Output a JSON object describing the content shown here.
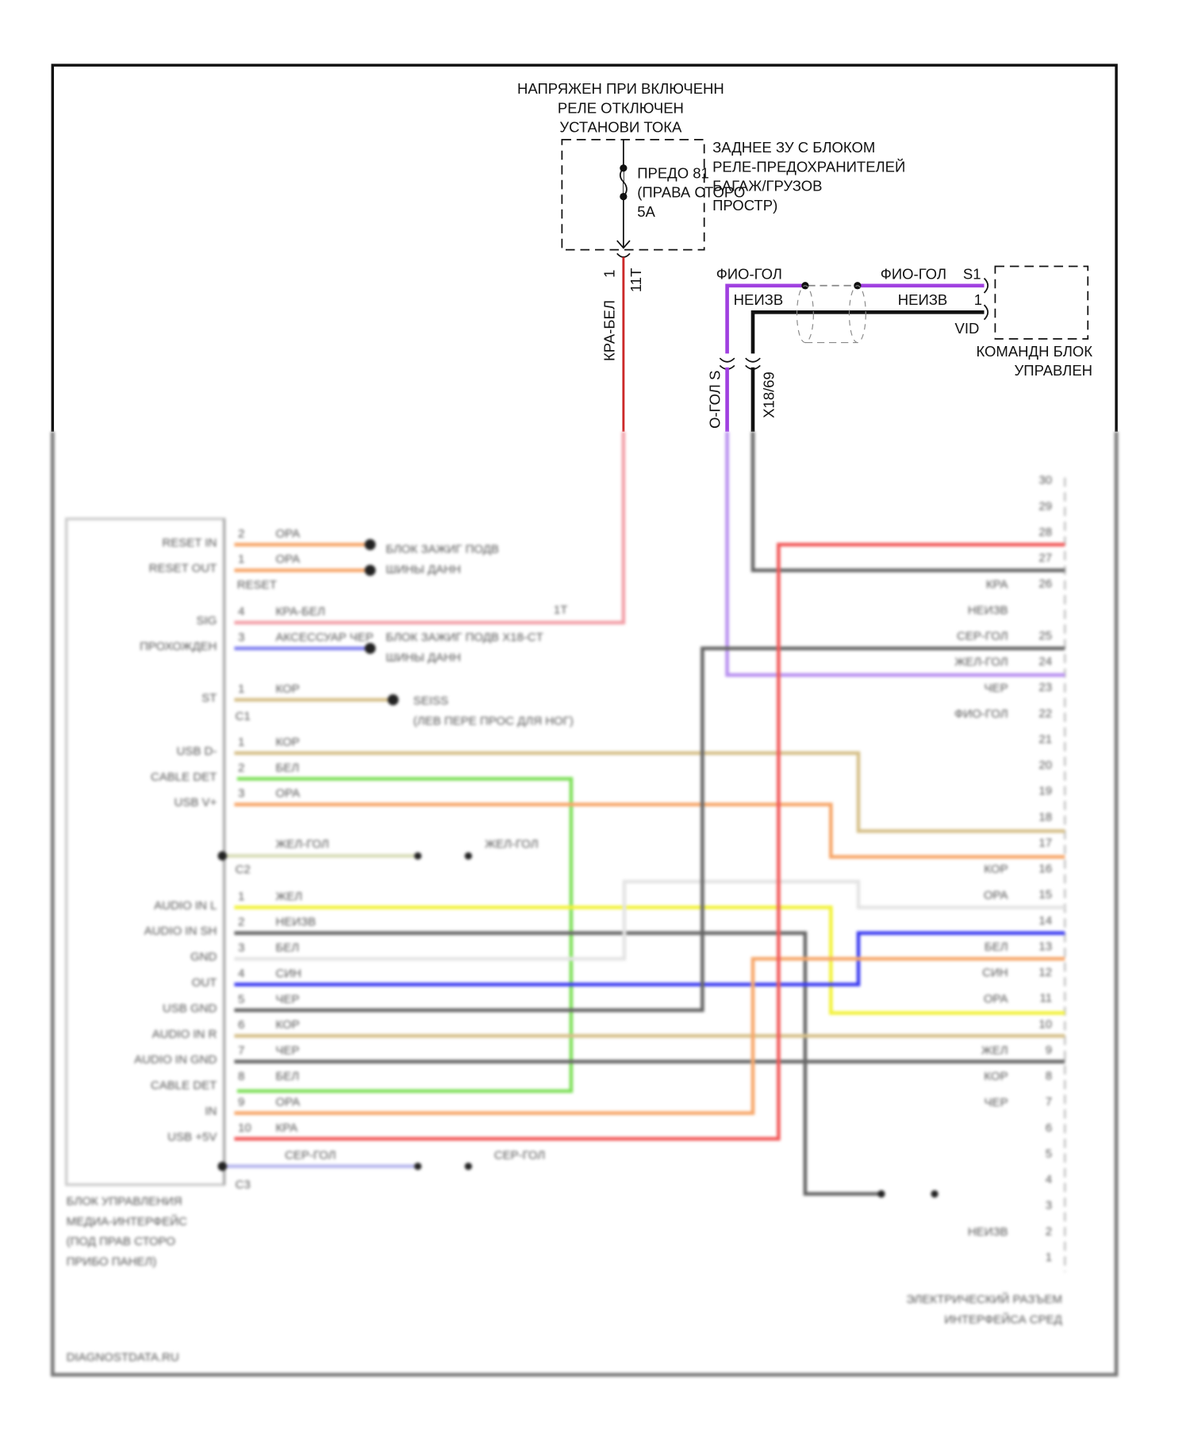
{
  "header": {
    "lines": [
      "НАПРЯЖЕН ПРИ ВКЛЮЧЕНН",
      "РЕЛЕ ОТКЛЮЧЕН",
      "УСТАНОВИ ТОКА"
    ]
  },
  "fuse_box": {
    "title": [
      "ЗАДНЕЕ ЗУ С БЛОКОМ",
      "РЕЛЕ-ПРЕДОХРАНИТЕЛЕЙ",
      "БАГАЖ/ГРУЗОВ",
      "ПРОСТР)"
    ],
    "fuse": [
      "ПРЕДО 81",
      "(ПРАВА СТОРО",
      "5A"
    ],
    "pin": "1",
    "connector": "11T",
    "wire": "КРА-БЕЛ"
  },
  "control_unit": {
    "title": [
      "КОМАНДН БЛОК",
      "УПРАВЛЕН"
    ],
    "pin_s1": "S1",
    "pin_1": "1",
    "vid": "VID",
    "wire_top_left": "ФИО-ГОЛ",
    "wire_top_right": "ФИО-ГОЛ",
    "wire_bottom_left": "НЕИЗВ",
    "wire_bottom_right": "НЕИЗВ",
    "conn_left": "О-ГОЛ S",
    "conn_right": "X18/69"
  },
  "media_unit": {
    "title": [
      "БЛОК УПРАВЛЕНИЯ",
      "МЕДИА-ИНТЕРФЕЙС",
      "(ПОД ПРАВ СТОРО",
      "ПРИБО ПАНЕЛ)"
    ],
    "connectors": [
      "C1",
      "C2",
      "C3"
    ],
    "reset_label": "RESET",
    "pins": [
      {
        "label": "RESET IN",
        "pin": "2",
        "wire": "ОРА"
      },
      {
        "label": "RESET OUT",
        "pin": "1",
        "wire": "ОРА"
      },
      {
        "label": "SIG",
        "pin": "4",
        "wire": "КРА-БЕЛ"
      },
      {
        "label": "ПРОХОЖДЕН",
        "pin": "3",
        "wire": "АКСЕССУАР ЧЕР"
      },
      {
        "label": "ST",
        "pin": "1",
        "wire": "КОР"
      },
      {
        "label": "USB D-",
        "pin": "1",
        "wire": "КОР"
      },
      {
        "label": "CABLE DET",
        "pin": "2",
        "wire": "БЕЛ"
      },
      {
        "label": "USB V+",
        "pin": "3",
        "wire": "ОРА"
      },
      {
        "label": "AUDIO IN L",
        "pin": "1",
        "wire": "ЖЕЛ"
      },
      {
        "label": "AUDIO IN SH",
        "pin": "2",
        "wire": "НЕИЗВ"
      },
      {
        "label": "GND",
        "pin": "3",
        "wire": "БЕЛ"
      },
      {
        "label": "OUT",
        "pin": "4",
        "wire": "СИН"
      },
      {
        "label": "USB GND",
        "pin": "5",
        "wire": "ЧЕР"
      },
      {
        "label": "AUDIO IN R",
        "pin": "6",
        "wire": "КОР"
      },
      {
        "label": "AUDIO IN GND",
        "pin": "7",
        "wire": "ЧЕР"
      },
      {
        "label": "CABLE DET",
        "pin": "8",
        "wire": "БЕЛ"
      },
      {
        "label": "IN",
        "pin": "9",
        "wire": "ОРА"
      },
      {
        "label": "USB +5V",
        "pin": "10",
        "wire": "КРА"
      }
    ],
    "shield_wires": [
      "ЖЕЛ-ГОЛ",
      "ЖЕЛ-ГОЛ",
      "СЕР-ГОЛ",
      "СЕР-ГОЛ"
    ],
    "ext_targets": {
      "bus": [
        "БЛОК ЗАЖИГ ПОДВ",
        "ШИНЫ ДАНН"
      ],
      "bus2": [
        "БЛОК ЗАЖИГ ПОДВ X18-CT",
        "ШИНЫ ДАНН"
      ],
      "sensor": [
        "SEISS",
        "(ЛЕВ ПЕРЕ ПРОС ДЛЯ НОГ)"
      ],
      "sig_conn": "1Т"
    }
  },
  "interface_connector": {
    "title": [
      "ЭЛЕКТРИЧЕСКИЙ РАЗЪЕМ",
      "ИНТЕРФЕЙСА СРЕД"
    ],
    "pins": [
      {
        "pin": "30",
        "wire": ""
      },
      {
        "pin": "29",
        "wire": ""
      },
      {
        "pin": "28",
        "wire": "КРА"
      },
      {
        "pin": "27",
        "wire": "НЕИЗВ"
      },
      {
        "pin": "26",
        "wire": "СЕР-ГОЛ"
      },
      {
        "pin": "",
        "wire": "ЖЕЛ-ГОЛ"
      },
      {
        "pin": "25",
        "wire": "ЧЕР"
      },
      {
        "pin": "24",
        "wire": "ФИО-ГОЛ"
      },
      {
        "pin": "23",
        "wire": ""
      },
      {
        "pin": "22",
        "wire": ""
      },
      {
        "pin": "21",
        "wire": ""
      },
      {
        "pin": "20",
        "wire": ""
      },
      {
        "pin": "19",
        "wire": ""
      },
      {
        "pin": "18",
        "wire": "КОР"
      },
      {
        "pin": "17",
        "wire": "ОРА"
      },
      {
        "pin": "16",
        "wire": ""
      },
      {
        "pin": "15",
        "wire": "БЕЛ"
      },
      {
        "pin": "14",
        "wire": "СИН"
      },
      {
        "pin": "13",
        "wire": "ОРА"
      },
      {
        "pin": "12",
        "wire": ""
      },
      {
        "pin": "11",
        "wire": "ЖЕЛ"
      },
      {
        "pin": "10",
        "wire": "КОР"
      },
      {
        "pin": "9",
        "wire": "ЧЕР"
      },
      {
        "pin": "8",
        "wire": ""
      },
      {
        "pin": "7",
        "wire": ""
      },
      {
        "pin": "6",
        "wire": ""
      },
      {
        "pin": "5",
        "wire": ""
      },
      {
        "pin": "4",
        "wire": "НЕИЗВ"
      },
      {
        "pin": "3",
        "wire": ""
      },
      {
        "pin": "2",
        "wire": ""
      },
      {
        "pin": "1",
        "wire": ""
      }
    ]
  },
  "watermark": "DIAGNOSTDATA.RU",
  "colors": {
    "red": "#cc2a2a",
    "purple": "#a040e0",
    "black": "#111111",
    "orange": "#f7a76a",
    "tan": "#d6c08a",
    "green": "#7ee05a",
    "blue": "#3b3bf0",
    "yellow": "#f2f23a",
    "gray": "#555555",
    "white": "#dddddd",
    "lavender": "#b8b8ee",
    "pink": "#f2a0a8"
  }
}
